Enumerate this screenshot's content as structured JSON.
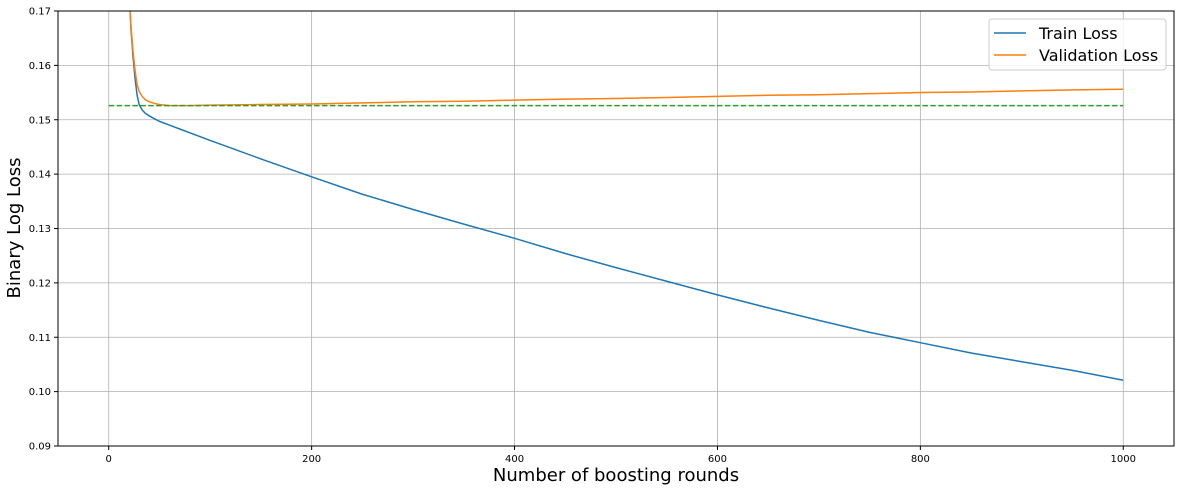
{
  "chart_data": {
    "type": "line",
    "title": "",
    "xlabel": "Number of boosting rounds",
    "ylabel": "Binary Log Loss",
    "xlim": [
      -50,
      1050
    ],
    "ylim": [
      0.09,
      0.17
    ],
    "xticks": [
      0,
      200,
      400,
      600,
      800,
      1000
    ],
    "yticks": [
      0.09,
      0.1,
      0.11,
      0.12,
      0.13,
      0.14,
      0.15,
      0.16,
      0.17
    ],
    "ytick_labels": [
      "0.09",
      "0.10",
      "0.11",
      "0.12",
      "0.13",
      "0.14",
      "0.15",
      "0.16",
      "0.17"
    ],
    "grid": true,
    "legend_position": "top-right",
    "series": [
      {
        "name": "Train Loss",
        "color": "#1f77b4",
        "style": "solid",
        "x": [
          21,
          22,
          24,
          26,
          28,
          30,
          33,
          36,
          40,
          45,
          50,
          60,
          70,
          80,
          100,
          150,
          200,
          250,
          300,
          350,
          400,
          450,
          500,
          550,
          600,
          650,
          700,
          750,
          800,
          850,
          900,
          950,
          1000
        ],
        "y": [
          0.1705,
          0.1665,
          0.1615,
          0.1575,
          0.1545,
          0.1528,
          0.1518,
          0.1512,
          0.1507,
          0.1502,
          0.1497,
          0.149,
          0.1483,
          0.1476,
          0.1462,
          0.1428,
          0.1395,
          0.1363,
          0.1335,
          0.1308,
          0.1282,
          0.1254,
          0.1228,
          0.1203,
          0.1178,
          0.1154,
          0.1131,
          0.1109,
          0.109,
          0.1071,
          0.1055,
          0.1039,
          0.1021
        ]
      },
      {
        "name": "Validation Loss",
        "color": "#ff7f0e",
        "style": "solid",
        "x": [
          21,
          22,
          24,
          26,
          28,
          30,
          33,
          36,
          40,
          45,
          50,
          60,
          70,
          80,
          100,
          150,
          200,
          250,
          300,
          350,
          400,
          450,
          500,
          550,
          600,
          650,
          700,
          750,
          800,
          850,
          900,
          950,
          1000
        ],
        "y": [
          0.1705,
          0.167,
          0.1625,
          0.159,
          0.1565,
          0.1552,
          0.1543,
          0.1537,
          0.1533,
          0.153,
          0.1528,
          0.1526,
          0.1526,
          0.1526,
          0.1527,
          0.1528,
          0.1529,
          0.1531,
          0.1533,
          0.1534,
          0.1536,
          0.1538,
          0.1539,
          0.1541,
          0.1543,
          0.1545,
          0.1546,
          0.1548,
          0.155,
          0.1551,
          0.1553,
          0.1555,
          0.1556
        ]
      },
      {
        "name": "",
        "color": "#2ca02c",
        "style": "dashed",
        "x": [
          0,
          1000
        ],
        "y": [
          0.1526,
          0.1526
        ]
      }
    ]
  }
}
